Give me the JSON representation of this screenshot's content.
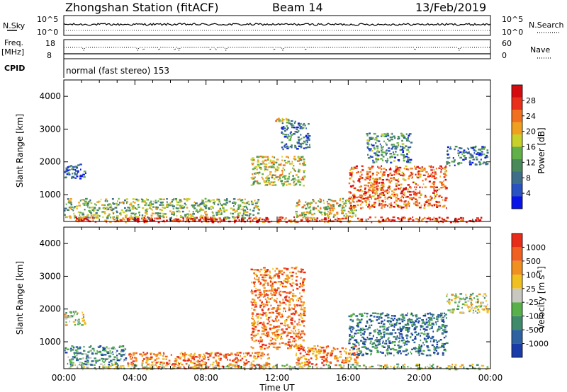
{
  "header": {
    "station": "Zhongshan Station (fitACF)",
    "beam": "Beam 14",
    "date": "13/Feb/2019"
  },
  "top_panels": {
    "nsky_label": "N.Sky",
    "nsky_ticks": [
      "10^5",
      "10^0"
    ],
    "nsearch_label": "N.Search",
    "nsearch_ticks": [
      "10^5",
      "10^0"
    ],
    "freq_label": "Freq.",
    "freq_unit": "[MHz]",
    "freq_ticks": [
      "18",
      "8"
    ],
    "nave_label": "Nave",
    "nave_ticks": [
      "60",
      "0"
    ],
    "cpid_label": "CPID",
    "cpid_text": "normal (fast stereo) 153"
  },
  "chart_data": [
    {
      "type": "heatmap",
      "parameter": "power",
      "ylabel": "Slant Range [km]",
      "ylim": [
        180,
        4500
      ],
      "yticks": [
        "1000",
        "2000",
        "3000",
        "4000"
      ],
      "xlim_hours": [
        0,
        24
      ],
      "colorbar_label": "Power [dB]",
      "colorbar_ticks": [
        "28",
        "24",
        "20",
        "16",
        "12",
        "8",
        "4"
      ],
      "colors": [
        "#0a14e8",
        "#2a52c0",
        "#3e6e8a",
        "#4a8a5a",
        "#62b04a",
        "#c8d02a",
        "#f0a020",
        "#f07020",
        "#e8301a",
        "#d40c10"
      ],
      "regions": [
        {
          "x": [
            0.2,
            23.8
          ],
          "y": [
            180,
            340
          ],
          "level": 0.85
        },
        {
          "x": [
            3.5,
            11.5
          ],
          "y": [
            200,
            320
          ],
          "level": 0.98
        },
        {
          "x": [
            0,
            11
          ],
          "y": [
            300,
            900
          ],
          "level": 0.45
        },
        {
          "x": [
            0,
            1.2
          ],
          "y": [
            1500,
            1950
          ],
          "level": 0.2
        },
        {
          "x": [
            10.5,
            13.5
          ],
          "y": [
            1300,
            2200
          ],
          "level": 0.55
        },
        {
          "x": [
            11.8,
            13
          ],
          "y": [
            3200,
            3350
          ],
          "level": 0.5
        },
        {
          "x": [
            12.2,
            13.8
          ],
          "y": [
            2400,
            3200
          ],
          "level": 0.25
        },
        {
          "x": [
            13,
            16.5
          ],
          "y": [
            300,
            900
          ],
          "level": 0.55
        },
        {
          "x": [
            16,
            21.5
          ],
          "y": [
            600,
            1900
          ],
          "level": 0.78
        },
        {
          "x": [
            21.5,
            23.8
          ],
          "y": [
            1900,
            2500
          ],
          "level": 0.25
        },
        {
          "x": [
            17,
            19.5
          ],
          "y": [
            2000,
            2900
          ],
          "level": 0.3
        }
      ]
    },
    {
      "type": "heatmap",
      "parameter": "velocity",
      "ylabel": "Slant Range [km]",
      "ylim": [
        180,
        4500
      ],
      "yticks": [
        "1000",
        "2000",
        "3000",
        "4000"
      ],
      "xlim_hours": [
        0,
        24
      ],
      "xticks": [
        "00:00",
        "04:00",
        "08:00",
        "12:00",
        "16:00",
        "20:00",
        "00:00"
      ],
      "xlabel": "Time UT",
      "colorbar_label": "Velocity [m s^-1]",
      "colorbar_ticks": [
        "1000",
        "500",
        "100",
        "25",
        "-25",
        "-100",
        "-500",
        "-1000"
      ],
      "colors": [
        "#1a3ca8",
        "#2e62a0",
        "#3e8a6a",
        "#58b04a",
        "#c8c8c0",
        "#f0c020",
        "#f09020",
        "#f06020",
        "#e82c1a"
      ],
      "regions": [
        {
          "x": [
            0.2,
            23.8
          ],
          "y": [
            180,
            340
          ],
          "level": 0.5
        },
        {
          "x": [
            3.5,
            11.5
          ],
          "y": [
            200,
            700
          ],
          "level": 0.8
        },
        {
          "x": [
            0,
            3.5
          ],
          "y": [
            300,
            900
          ],
          "level": 0.3
        },
        {
          "x": [
            0,
            1.2
          ],
          "y": [
            1500,
            1950
          ],
          "level": 0.5
        },
        {
          "x": [
            10.5,
            13.5
          ],
          "y": [
            800,
            3300
          ],
          "level": 0.8
        },
        {
          "x": [
            13,
            16.5
          ],
          "y": [
            300,
            900
          ],
          "level": 0.78
        },
        {
          "x": [
            16,
            21.5
          ],
          "y": [
            600,
            1900
          ],
          "level": 0.22
        },
        {
          "x": [
            21.5,
            23.8
          ],
          "y": [
            1900,
            2500
          ],
          "level": 0.5
        }
      ]
    }
  ]
}
